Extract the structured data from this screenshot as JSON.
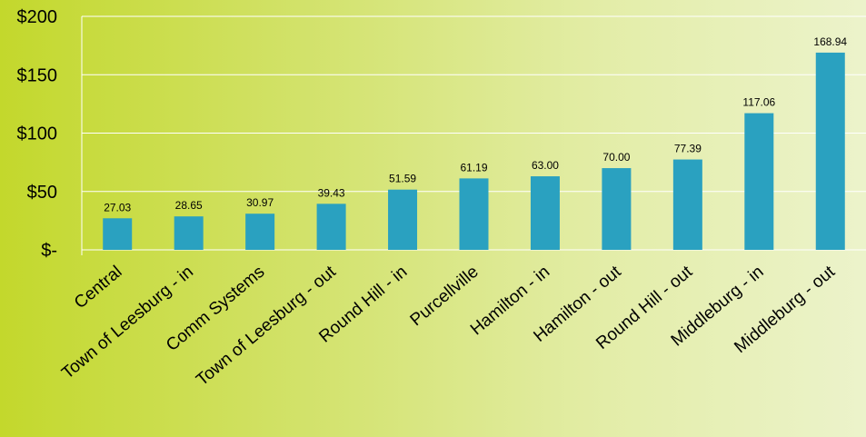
{
  "chart_data": {
    "type": "bar",
    "title": "",
    "xlabel": "",
    "ylabel": "",
    "categories": [
      "Central",
      "Town of Leesburg - in",
      "Comm Systems",
      "Town of Leesburg - out",
      "Round Hill - in",
      "Purcellville",
      "Hamilton - in",
      "Hamilton - out",
      "Round Hill - out",
      "Middleburg - in",
      "Middleburg - out"
    ],
    "values": [
      27.03,
      28.65,
      30.97,
      39.43,
      51.59,
      61.19,
      63.0,
      70.0,
      77.39,
      117.06,
      168.94
    ],
    "data_labels": [
      "27.03",
      "28.65",
      "30.97",
      "39.43",
      "51.59",
      "61.19",
      "63.00",
      "70.00",
      "77.39",
      "117.06",
      "168.94"
    ],
    "ylim": [
      0,
      200
    ],
    "yticks": [
      0,
      50,
      100,
      150,
      200
    ],
    "ytick_labels": [
      "$-",
      "$50",
      "$100",
      "$150",
      "$200"
    ],
    "grid": true,
    "bar_color": "#2aa1c0",
    "gridline_color": "#ffffff"
  }
}
